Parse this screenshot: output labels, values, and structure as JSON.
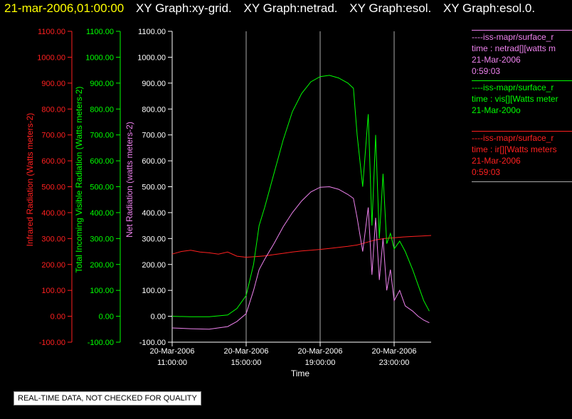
{
  "header": {
    "timestamp": "21-mar-2006,01:00:00",
    "graph_titles": [
      "XY Graph:xy-grid.",
      "XY Graph:netrad.",
      "XY Graph:esol.",
      "XY Graph:esol.0."
    ]
  },
  "legend": [
    {
      "lines": [
        "----iss-mapr/surface_r",
        "time : netrad[][watts m",
        "21-Mar-2006",
        "0:59:03"
      ],
      "color": "#ee82ee"
    },
    {
      "lines": [
        "----iss-mapr/surface_r",
        "time : vis[][Watts meter",
        "21-Mar-200o"
      ],
      "color": "#00ff00"
    },
    {
      "lines": [
        "----iss-mapr/surface_r",
        "time : ir[][Watts meters",
        "21-Mar-2006",
        "0:59:03"
      ],
      "color": "#ff2020"
    }
  ],
  "footer_note": "REAL-TIME DATA, NOT CHECKED FOR QUALITY",
  "colors": {
    "ir": "#ff2020",
    "vis": "#00ff00",
    "netrad": "#ee82ee",
    "grid": "#aaaaaa",
    "axis": "#ffffff",
    "title_time": "#ffff00"
  },
  "chart_data": {
    "type": "line",
    "xlabel": "Time",
    "x_ticks": [
      {
        "hours": 11,
        "date": "20-Mar-2006",
        "time": "11:00:00"
      },
      {
        "hours": 15,
        "date": "20-Mar-2006",
        "time": "15:00:00"
      },
      {
        "hours": 19,
        "date": "20-Mar-2006",
        "time": "19:00:00"
      },
      {
        "hours": 23,
        "date": "20-Mar-2006",
        "time": "23:00:00"
      }
    ],
    "xlim_hours": [
      11,
      25
    ],
    "ylim": [
      -100,
      1100
    ],
    "y_ticks": [
      "-100.00",
      "0.00",
      "100.00",
      "200.00",
      "300.00",
      "400.00",
      "500.00",
      "600.00",
      "700.00",
      "800.00",
      "900.00",
      "1000.00",
      "1100.00"
    ],
    "axes": [
      {
        "id": "ir",
        "label": "Infrared Radiation (Watts meters-2)",
        "color": "#ff2020"
      },
      {
        "id": "vis",
        "label": "Total Incoming Visible Radiation (Watts meters-2)",
        "color": "#00ff00"
      },
      {
        "id": "netrad",
        "label": "Net Radiation (watts meters-2)",
        "color": "#ee82ee"
      }
    ],
    "series": [
      {
        "axis": "ir",
        "color": "#ff2020",
        "x": [
          11.0,
          11.5,
          12.0,
          12.5,
          13.0,
          13.5,
          14.0,
          14.5,
          15.0,
          15.5,
          16.0,
          16.5,
          17.0,
          17.5,
          18.0,
          18.5,
          19.0,
          19.5,
          20.0,
          20.5,
          21.0,
          21.5,
          22.0,
          22.5,
          23.0,
          23.5,
          24.0,
          24.5,
          25.0
        ],
        "y": [
          240,
          250,
          255,
          248,
          245,
          240,
          248,
          232,
          228,
          230,
          233,
          238,
          243,
          248,
          252,
          255,
          258,
          262,
          266,
          270,
          275,
          285,
          295,
          300,
          303,
          306,
          308,
          310,
          312
        ]
      },
      {
        "axis": "vis",
        "color": "#00ff00",
        "x": [
          11.0,
          12.0,
          13.0,
          14.0,
          14.5,
          15.0,
          15.4,
          15.7,
          16.0,
          16.5,
          17.0,
          17.5,
          18.0,
          18.5,
          19.0,
          19.5,
          20.0,
          20.5,
          20.8,
          21.0,
          21.3,
          21.6,
          21.8,
          22.0,
          22.2,
          22.4,
          22.6,
          22.8,
          23.0,
          23.3,
          23.6,
          24.0,
          24.3,
          24.6,
          24.9
        ],
        "y": [
          0,
          -2,
          -2,
          5,
          30,
          80,
          200,
          350,
          420,
          550,
          680,
          790,
          860,
          905,
          925,
          930,
          920,
          900,
          880,
          700,
          500,
          780,
          350,
          700,
          300,
          550,
          280,
          320,
          260,
          290,
          250,
          180,
          120,
          60,
          20
        ]
      },
      {
        "axis": "netrad",
        "color": "#ee82ee",
        "x": [
          11.0,
          12.0,
          13.0,
          14.0,
          14.5,
          15.0,
          15.4,
          15.7,
          16.0,
          16.5,
          17.0,
          17.5,
          18.0,
          18.5,
          19.0,
          19.5,
          20.0,
          20.5,
          20.8,
          21.0,
          21.3,
          21.6,
          21.8,
          22.0,
          22.2,
          22.4,
          22.6,
          22.8,
          23.0,
          23.3,
          23.6,
          24.0,
          24.3,
          24.6,
          24.9
        ],
        "y": [
          -45,
          -48,
          -50,
          -40,
          -20,
          10,
          100,
          180,
          220,
          280,
          345,
          400,
          445,
          480,
          498,
          500,
          490,
          470,
          455,
          380,
          250,
          420,
          160,
          380,
          140,
          300,
          100,
          180,
          60,
          100,
          40,
          20,
          0,
          -15,
          -25
        ]
      }
    ]
  }
}
